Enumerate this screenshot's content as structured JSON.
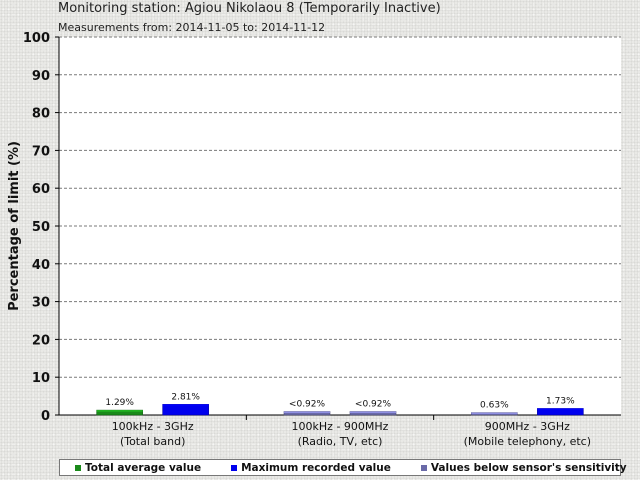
{
  "header": {
    "title": "Monitoring station: Agiou Nikolaou 8 (Temporarily Inactive)",
    "subtitle": "Measurements from: 2014-11-05 to: 2014-11-12"
  },
  "colors": {
    "average": "#1a8a1a",
    "maximum": "#0000ee",
    "below_sensitivity": "#6a6aa8"
  },
  "chart_data": {
    "type": "bar",
    "ylabel": "Percentage of limit (%)",
    "ylim": [
      0,
      100
    ],
    "yticks": [
      0,
      10,
      20,
      30,
      40,
      50,
      60,
      70,
      80,
      90,
      100
    ],
    "grid": true,
    "legend_position": "bottom",
    "categories": [
      {
        "line1": "100kHz - 3GHz",
        "line2": "(Total band)"
      },
      {
        "line1": "100kHz - 900MHz",
        "line2": "(Radio, TV, etc)"
      },
      {
        "line1": "900MHz - 3GHz",
        "line2": "(Mobile telephony, etc)"
      }
    ],
    "bars": [
      {
        "category": 0,
        "slot": 0,
        "value": 1.29,
        "label": "1.29%",
        "series": "average"
      },
      {
        "category": 0,
        "slot": 1,
        "value": 2.81,
        "label": "2.81%",
        "series": "maximum"
      },
      {
        "category": 1,
        "slot": 0,
        "value": 0.92,
        "label": "<0.92%",
        "series": "below_sensitivity"
      },
      {
        "category": 1,
        "slot": 1,
        "value": 0.92,
        "label": "<0.92%",
        "series": "below_sensitivity"
      },
      {
        "category": 2,
        "slot": 0,
        "value": 0.63,
        "label": "0.63%",
        "series": "below_sensitivity"
      },
      {
        "category": 2,
        "slot": 1,
        "value": 1.73,
        "label": "1.73%",
        "series": "maximum"
      }
    ],
    "legend": [
      {
        "series": "average",
        "label": "Total average value"
      },
      {
        "series": "maximum",
        "label": "Maximum recorded value"
      },
      {
        "series": "below_sensitivity",
        "label": "Values below sensor's sensitivity"
      }
    ]
  }
}
